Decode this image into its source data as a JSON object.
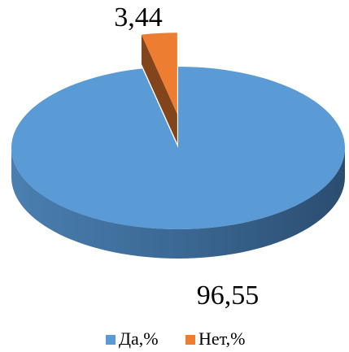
{
  "chart_data": {
    "type": "pie",
    "categories": [
      "Да,%",
      "Нет,%"
    ],
    "values": [
      96.55,
      3.44
    ],
    "value_labels": [
      "96,55",
      "3,44"
    ],
    "colors": [
      "#5b9bd5",
      "#ed7d31"
    ],
    "exploded": [
      false,
      true
    ],
    "legend": "bottom"
  }
}
